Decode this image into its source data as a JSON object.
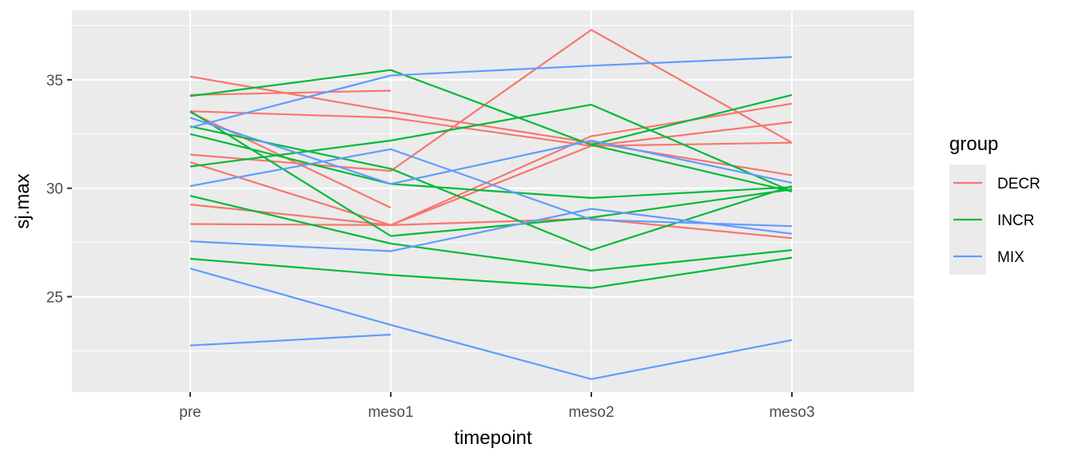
{
  "chart_data": {
    "type": "line",
    "categories": [
      "pre",
      "meso1",
      "meso2",
      "meso3"
    ],
    "xlabel": "timepoint",
    "ylabel": "sj.max",
    "ylim": [
      20.6,
      38.2
    ],
    "yticks": [
      25,
      30,
      35
    ],
    "grid": true,
    "legend": {
      "title": "group",
      "placement": "right",
      "entries": [
        {
          "name": "DECR",
          "color": "#F8766D"
        },
        {
          "name": "INCR",
          "color": "#00BA38"
        },
        {
          "name": "MIX",
          "color": "#619CFF"
        }
      ]
    },
    "series": [
      {
        "group": "DECR",
        "values": [
          35.15,
          33.55,
          32.1,
          30.6
        ]
      },
      {
        "group": "DECR",
        "values": [
          34.3,
          34.5,
          null,
          null
        ]
      },
      {
        "group": "DECR",
        "values": [
          33.55,
          33.25,
          31.95,
          33.05
        ]
      },
      {
        "group": "DECR",
        "values": [
          31.55,
          30.8,
          37.3,
          32.1
        ]
      },
      {
        "group": "DECR",
        "values": [
          31.2,
          28.3,
          31.95,
          32.1
        ]
      },
      {
        "group": "DECR",
        "values": [
          29.25,
          28.3,
          32.4,
          33.9
        ]
      },
      {
        "group": "DECR",
        "values": [
          28.35,
          28.3,
          28.6,
          27.7
        ]
      },
      {
        "group": "DECR",
        "values": [
          33.5,
          29.1,
          null,
          null
        ]
      },
      {
        "group": "INCR",
        "values": [
          34.25,
          35.45,
          32.0,
          29.85
        ]
      },
      {
        "group": "INCR",
        "values": [
          33.55,
          27.8,
          28.65,
          29.95
        ]
      },
      {
        "group": "INCR",
        "values": [
          32.5,
          30.2,
          29.55,
          30.05
        ]
      },
      {
        "group": "INCR",
        "values": [
          31.0,
          32.2,
          33.85,
          29.85
        ]
      },
      {
        "group": "INCR",
        "values": [
          32.85,
          30.9,
          27.15,
          30.1
        ]
      },
      {
        "group": "INCR",
        "values": [
          29.65,
          27.45,
          26.2,
          27.15
        ]
      },
      {
        "group": "INCR",
        "values": [
          26.75,
          26.0,
          25.4,
          26.8
        ]
      },
      {
        "group": "INCR",
        "values": [
          null,
          null,
          32.0,
          34.3
        ]
      },
      {
        "group": "MIX",
        "values": [
          32.8,
          35.2,
          35.65,
          36.05
        ]
      },
      {
        "group": "MIX",
        "values": [
          33.25,
          30.2,
          32.2,
          30.25
        ]
      },
      {
        "group": "MIX",
        "values": [
          30.1,
          31.8,
          28.55,
          28.25
        ]
      },
      {
        "group": "MIX",
        "values": [
          27.55,
          27.1,
          29.05,
          27.9
        ]
      },
      {
        "group": "MIX",
        "values": [
          26.3,
          23.7,
          21.2,
          23.0
        ]
      },
      {
        "group": "MIX",
        "values": [
          22.75,
          23.25,
          null,
          null
        ]
      }
    ]
  }
}
